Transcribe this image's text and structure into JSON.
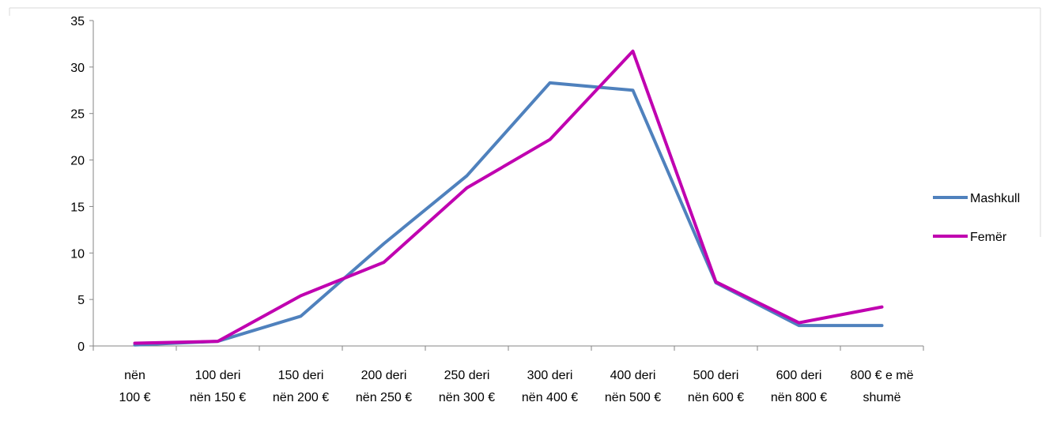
{
  "chart_data": {
    "type": "line",
    "categories": [
      [
        "nën",
        "100 €"
      ],
      [
        "100 deri",
        "nën 150 €"
      ],
      [
        "150 deri",
        "nën 200 €"
      ],
      [
        "200 deri",
        "nën 250 €"
      ],
      [
        "250 deri",
        "nën 300 €"
      ],
      [
        "300 deri",
        "nën 400 €"
      ],
      [
        "400 deri",
        "nën 500 €"
      ],
      [
        "500 deri",
        "nën 600 €"
      ],
      [
        "600 deri",
        "nën 800 €"
      ],
      [
        "800 € e më",
        "shumë"
      ]
    ],
    "series": [
      {
        "name": "Mashkull",
        "color": "#4F81BD",
        "values": [
          0.1,
          0.5,
          3.2,
          11.0,
          18.3,
          28.3,
          27.5,
          6.8,
          2.2,
          2.2
        ]
      },
      {
        "name": "Femër",
        "color": "#C000B0",
        "values": [
          0.3,
          0.5,
          5.4,
          9.0,
          17.0,
          22.2,
          31.7,
          6.9,
          2.5,
          4.2
        ]
      }
    ],
    "ylim": [
      0,
      35
    ],
    "yticks": [
      0,
      5,
      10,
      15,
      20,
      25,
      30,
      35
    ],
    "grid": false,
    "legend": "right"
  }
}
